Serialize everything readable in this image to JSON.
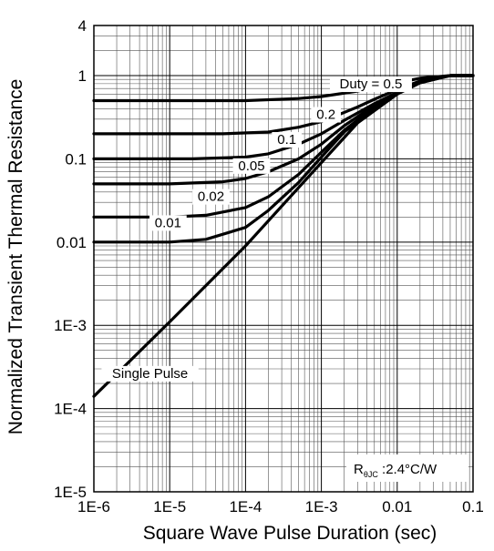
{
  "chart_data": {
    "type": "line",
    "title": "",
    "xlabel": "Square Wave Pulse Duration (sec)",
    "ylabel": "Normalized Transient Thermal Resistance",
    "xscale": "log",
    "yscale": "log",
    "xlim": [
      1e-06,
      0.1
    ],
    "ylim": [
      1e-05,
      4
    ],
    "x_ticks": [
      {
        "value": 1e-06,
        "label": "1E-6"
      },
      {
        "value": 1e-05,
        "label": "1E-5"
      },
      {
        "value": 0.0001,
        "label": "1E-4"
      },
      {
        "value": 0.001,
        "label": "1E-3"
      },
      {
        "value": 0.01,
        "label": "0.01"
      },
      {
        "value": 0.1,
        "label": "0.1"
      }
    ],
    "y_ticks": [
      {
        "value": 4,
        "label": "4"
      },
      {
        "value": 1,
        "label": "1"
      },
      {
        "value": 0.1,
        "label": "0.1"
      },
      {
        "value": 0.01,
        "label": "0.01"
      },
      {
        "value": 0.001,
        "label": "1E-3"
      },
      {
        "value": 0.0001,
        "label": "1E-4"
      },
      {
        "value": 1e-05,
        "label": "1E-5"
      }
    ],
    "grid": true,
    "annotation": {
      "text": "R",
      "subscript": "θJC",
      "suffix": " :2.4°C/W",
      "placement": "bottom-right"
    },
    "series": [
      {
        "name": "Duty = 0.5",
        "x": [
          1e-06,
          0.0001,
          0.0005,
          0.001,
          0.003,
          0.005,
          0.01,
          0.02,
          0.05,
          0.1
        ],
        "y": [
          0.5,
          0.5,
          0.53,
          0.56,
          0.65,
          0.72,
          0.82,
          0.93,
          1,
          1
        ]
      },
      {
        "name": "0.2",
        "x": [
          1e-06,
          5e-05,
          0.0002,
          0.0005,
          0.001,
          0.003,
          0.005,
          0.01,
          0.02,
          0.05,
          0.1
        ],
        "y": [
          0.2,
          0.2,
          0.21,
          0.24,
          0.28,
          0.42,
          0.52,
          0.68,
          0.86,
          1,
          1
        ]
      },
      {
        "name": "0.1",
        "x": [
          1e-06,
          2e-05,
          0.0001,
          0.0002,
          0.0005,
          0.001,
          0.002,
          0.005,
          0.01,
          0.02,
          0.05,
          0.1
        ],
        "y": [
          0.1,
          0.1,
          0.105,
          0.115,
          0.15,
          0.2,
          0.29,
          0.46,
          0.63,
          0.84,
          1,
          1
        ]
      },
      {
        "name": "0.05",
        "x": [
          1e-06,
          1e-05,
          5e-05,
          0.0001,
          0.0002,
          0.0005,
          0.001,
          0.002,
          0.005,
          0.01,
          0.02,
          0.05,
          0.1
        ],
        "y": [
          0.05,
          0.05,
          0.053,
          0.058,
          0.07,
          0.1,
          0.15,
          0.25,
          0.44,
          0.62,
          0.83,
          1,
          1
        ]
      },
      {
        "name": "0.02",
        "x": [
          1e-06,
          1e-05,
          3e-05,
          0.0001,
          0.0002,
          0.0005,
          0.001,
          0.002,
          0.005,
          0.01,
          0.02,
          0.05,
          0.1
        ],
        "y": [
          0.02,
          0.02,
          0.021,
          0.026,
          0.035,
          0.065,
          0.12,
          0.22,
          0.42,
          0.61,
          0.83,
          1,
          1
        ]
      },
      {
        "name": "0.01",
        "x": [
          1e-06,
          1e-05,
          3e-05,
          0.0001,
          0.0002,
          0.0005,
          0.001,
          0.002,
          0.005,
          0.01,
          0.02,
          0.05,
          0.1
        ],
        "y": [
          0.01,
          0.01,
          0.0108,
          0.015,
          0.024,
          0.052,
          0.105,
          0.21,
          0.41,
          0.6,
          0.82,
          1,
          1
        ]
      },
      {
        "name": "Single Pulse",
        "x": [
          1e-06,
          1e-05,
          0.0001,
          0.001,
          0.003,
          0.01,
          0.02,
          0.05,
          0.1
        ],
        "y": [
          0.00014,
          0.0011,
          0.009,
          0.09,
          0.27,
          0.6,
          0.82,
          1,
          1
        ]
      }
    ]
  }
}
